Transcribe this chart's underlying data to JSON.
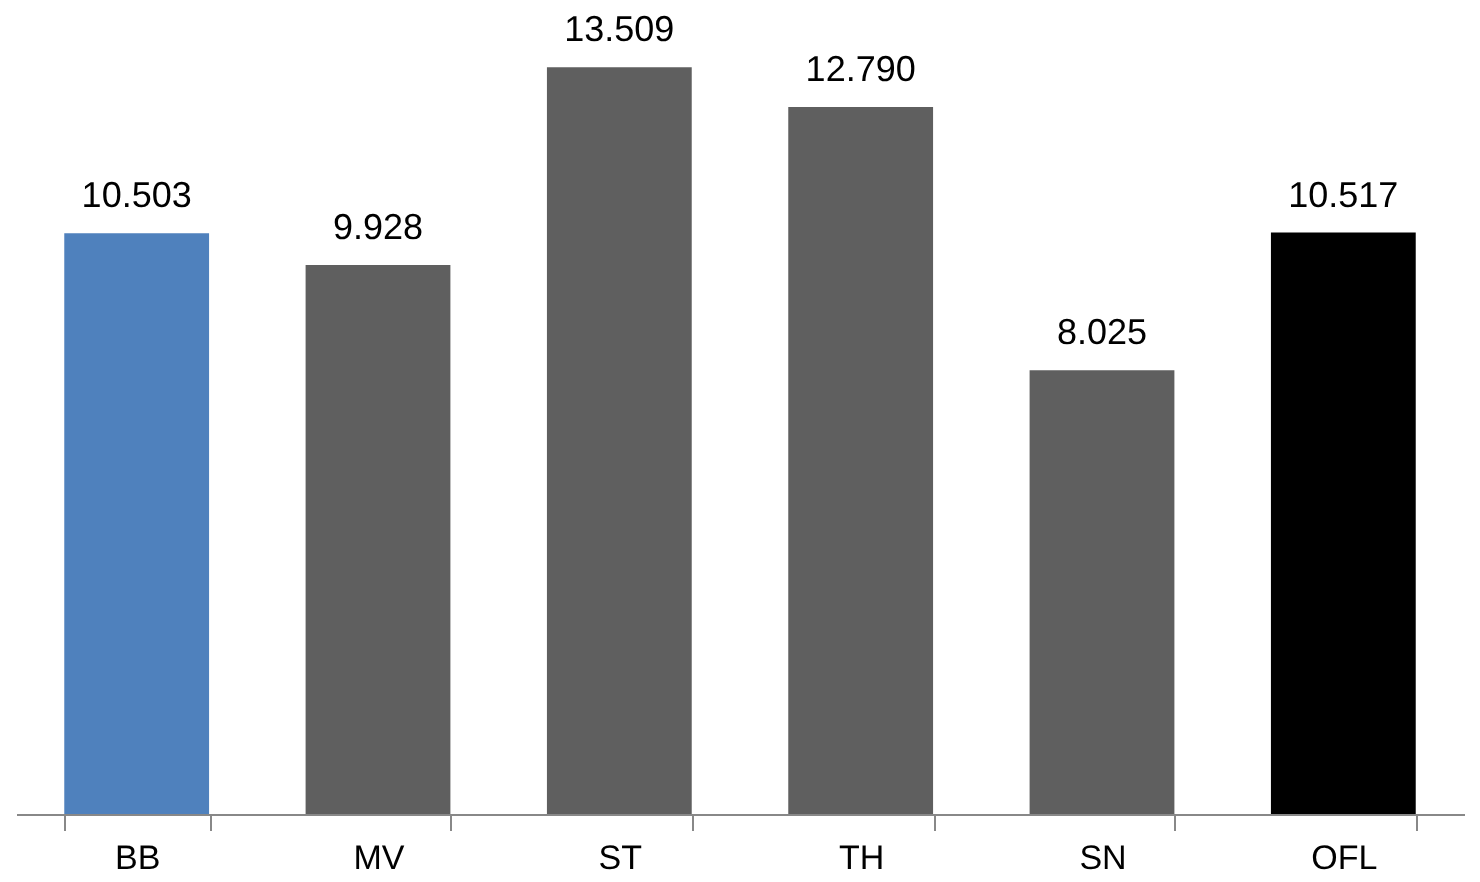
{
  "chart_data": {
    "type": "bar",
    "categories": [
      "BB",
      "MV",
      "ST",
      "TH",
      "SN",
      "OFL"
    ],
    "values": [
      10.503,
      9.928,
      13.509,
      12.79,
      8.025,
      10.517
    ],
    "colors": [
      "#4f81bd",
      "#5f5f5f",
      "#5f5f5f",
      "#5f5f5f",
      "#5f5f5f",
      "#000000"
    ],
    "value_labels": [
      "10.503",
      "9.928",
      "13.509",
      "12.790",
      "8.025",
      "10.517"
    ]
  }
}
